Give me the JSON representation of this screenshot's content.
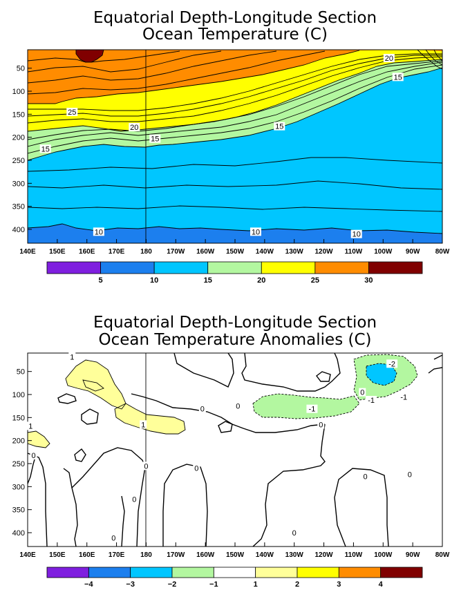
{
  "chart_data": [
    {
      "type": "heatmap",
      "title": "Equatorial Depth-Longitude Section",
      "subtitle": "Ocean Temperature (C)",
      "x_ticks": [
        "140E",
        "150E",
        "160E",
        "170E",
        "180",
        "170W",
        "160W",
        "150W",
        "140W",
        "130W",
        "120W",
        "110W",
        "100W",
        "90W",
        "80W"
      ],
      "y_ticks": [
        "50",
        "100",
        "150",
        "200",
        "250",
        "300",
        "350",
        "400"
      ],
      "y_tick_values": [
        50,
        100,
        150,
        200,
        250,
        300,
        350,
        400
      ],
      "ylim": [
        430,
        10
      ],
      "colorbar": {
        "labels": [
          "5",
          "10",
          "15",
          "20",
          "25",
          "30"
        ],
        "colors": [
          "#7f1fdf",
          "#1c7fee",
          "#00c6ff",
          "#b3f7a0",
          "#ffff00",
          "#ff8c00",
          "#800000"
        ]
      },
      "contour_labels": [
        {
          "text": "25",
          "lon": 155,
          "depth": 145
        },
        {
          "text": "20",
          "lon": 176,
          "depth": 178
        },
        {
          "text": "15",
          "lon": 183,
          "depth": 203
        },
        {
          "text": "15",
          "lon": 146,
          "depth": 225
        },
        {
          "text": "15",
          "lon": 225,
          "depth": 176
        },
        {
          "text": "20",
          "lon": 262,
          "depth": 28
        },
        {
          "text": "15",
          "lon": 265,
          "depth": 69
        },
        {
          "text": "10",
          "lon": 164,
          "depth": 405
        },
        {
          "text": "10",
          "lon": 217,
          "depth": 405
        },
        {
          "text": "10",
          "lon": 251,
          "depth": 410
        }
      ],
      "thermocline_depths": [
        [
          140,
          205
        ],
        [
          160,
          210
        ],
        [
          180,
          215
        ],
        [
          200,
          210
        ],
        [
          220,
          190
        ],
        [
          240,
          150
        ],
        [
          260,
          100
        ],
        [
          270,
          80
        ],
        [
          280,
          60
        ]
      ]
    },
    {
      "type": "heatmap",
      "title": "Equatorial Depth-Longitude Section",
      "subtitle": "Ocean Temperature Anomalies (C)",
      "x_ticks": [
        "140E",
        "150E",
        "160E",
        "170E",
        "180",
        "170W",
        "160W",
        "150W",
        "140W",
        "130W",
        "120W",
        "110W",
        "100W",
        "90W",
        "80W"
      ],
      "y_ticks": [
        "50",
        "100",
        "150",
        "200",
        "250",
        "300",
        "350",
        "400"
      ],
      "y_tick_values": [
        50,
        100,
        150,
        200,
        250,
        300,
        350,
        400
      ],
      "ylim": [
        430,
        10
      ],
      "colorbar": {
        "labels": [
          "-4",
          "-3",
          "-2",
          "-1",
          "1",
          "2",
          "3",
          "4"
        ],
        "colors": [
          "#7f1fdf",
          "#1c7fee",
          "#00c6ff",
          "#b3f7a0",
          "#ffffff",
          "#ffff9a",
          "#ffff00",
          "#ff8c00",
          "#800000"
        ]
      },
      "contour_labels": [
        {
          "text": "1",
          "lon": 155,
          "depth": 18
        },
        {
          "text": "1",
          "lon": 179,
          "depth": 165
        },
        {
          "text": "1",
          "lon": 141,
          "depth": 168
        },
        {
          "text": "0",
          "lon": 142,
          "depth": 232
        },
        {
          "text": "0",
          "lon": 180,
          "depth": 255
        },
        {
          "text": "0",
          "lon": 176,
          "depth": 327
        },
        {
          "text": "0",
          "lon": 169,
          "depth": 411
        },
        {
          "text": "0",
          "lon": 197,
          "depth": 260
        },
        {
          "text": "0",
          "lon": 211,
          "depth": 125
        },
        {
          "text": "0",
          "lon": 199,
          "depth": 131
        },
        {
          "text": "0",
          "lon": 239,
          "depth": 165
        },
        {
          "text": "0",
          "lon": 253,
          "depth": 95
        },
        {
          "text": "0",
          "lon": 254,
          "depth": 278
        },
        {
          "text": "0",
          "lon": 269,
          "depth": 273
        },
        {
          "text": "0",
          "lon": 230,
          "depth": 400
        },
        {
          "text": "-1",
          "lon": 236,
          "depth": 131
        },
        {
          "text": "-1",
          "lon": 256,
          "depth": 112
        },
        {
          "text": "-1",
          "lon": 267,
          "depth": 105
        },
        {
          "text": "-2",
          "lon": 263,
          "depth": 33
        }
      ]
    }
  ]
}
